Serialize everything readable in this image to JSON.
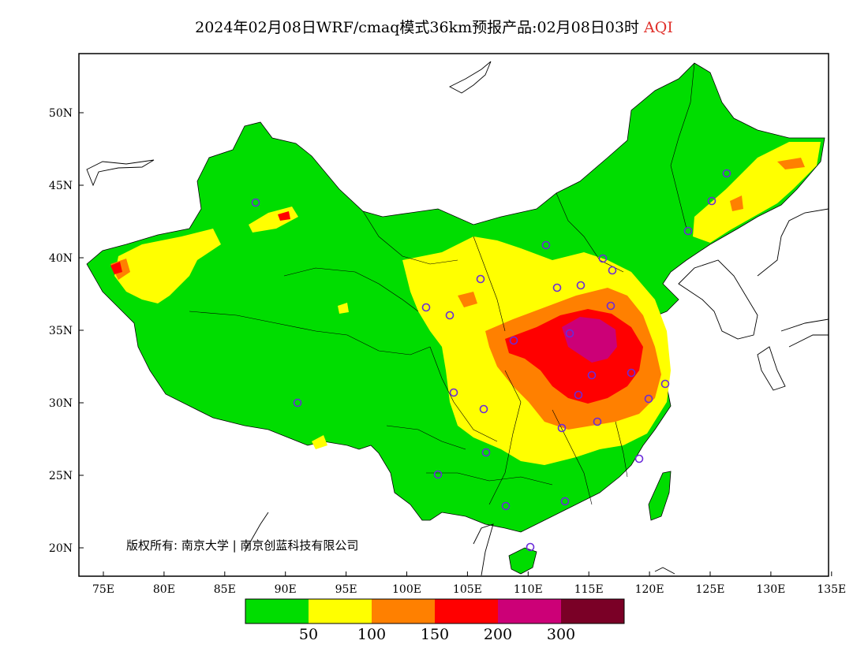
{
  "title": {
    "main": "2024年02月08日WRF/cmaq模式36km预报产品:02月08日03时",
    "variable": "AQI"
  },
  "map": {
    "lon_range": [
      73,
      135
    ],
    "lat_range": [
      18,
      54
    ],
    "x_ticks": [
      "75E",
      "80E",
      "85E",
      "90E",
      "95E",
      "100E",
      "105E",
      "110E",
      "115E",
      "120E",
      "125E",
      "130E",
      "135E"
    ],
    "y_ticks": [
      "50N",
      "45N",
      "40N",
      "35N",
      "30N",
      "25N",
      "20N"
    ],
    "copyright": "版权所有: 南京大学 | 南京创蓝科技有限公司"
  },
  "legend": {
    "colors": [
      "#00dd00",
      "#ffff00",
      "#ff8000",
      "#ff0000",
      "#cc0077",
      "#7a0026"
    ],
    "labels": [
      "50",
      "100",
      "150",
      "200",
      "300"
    ]
  },
  "stations": 33
}
